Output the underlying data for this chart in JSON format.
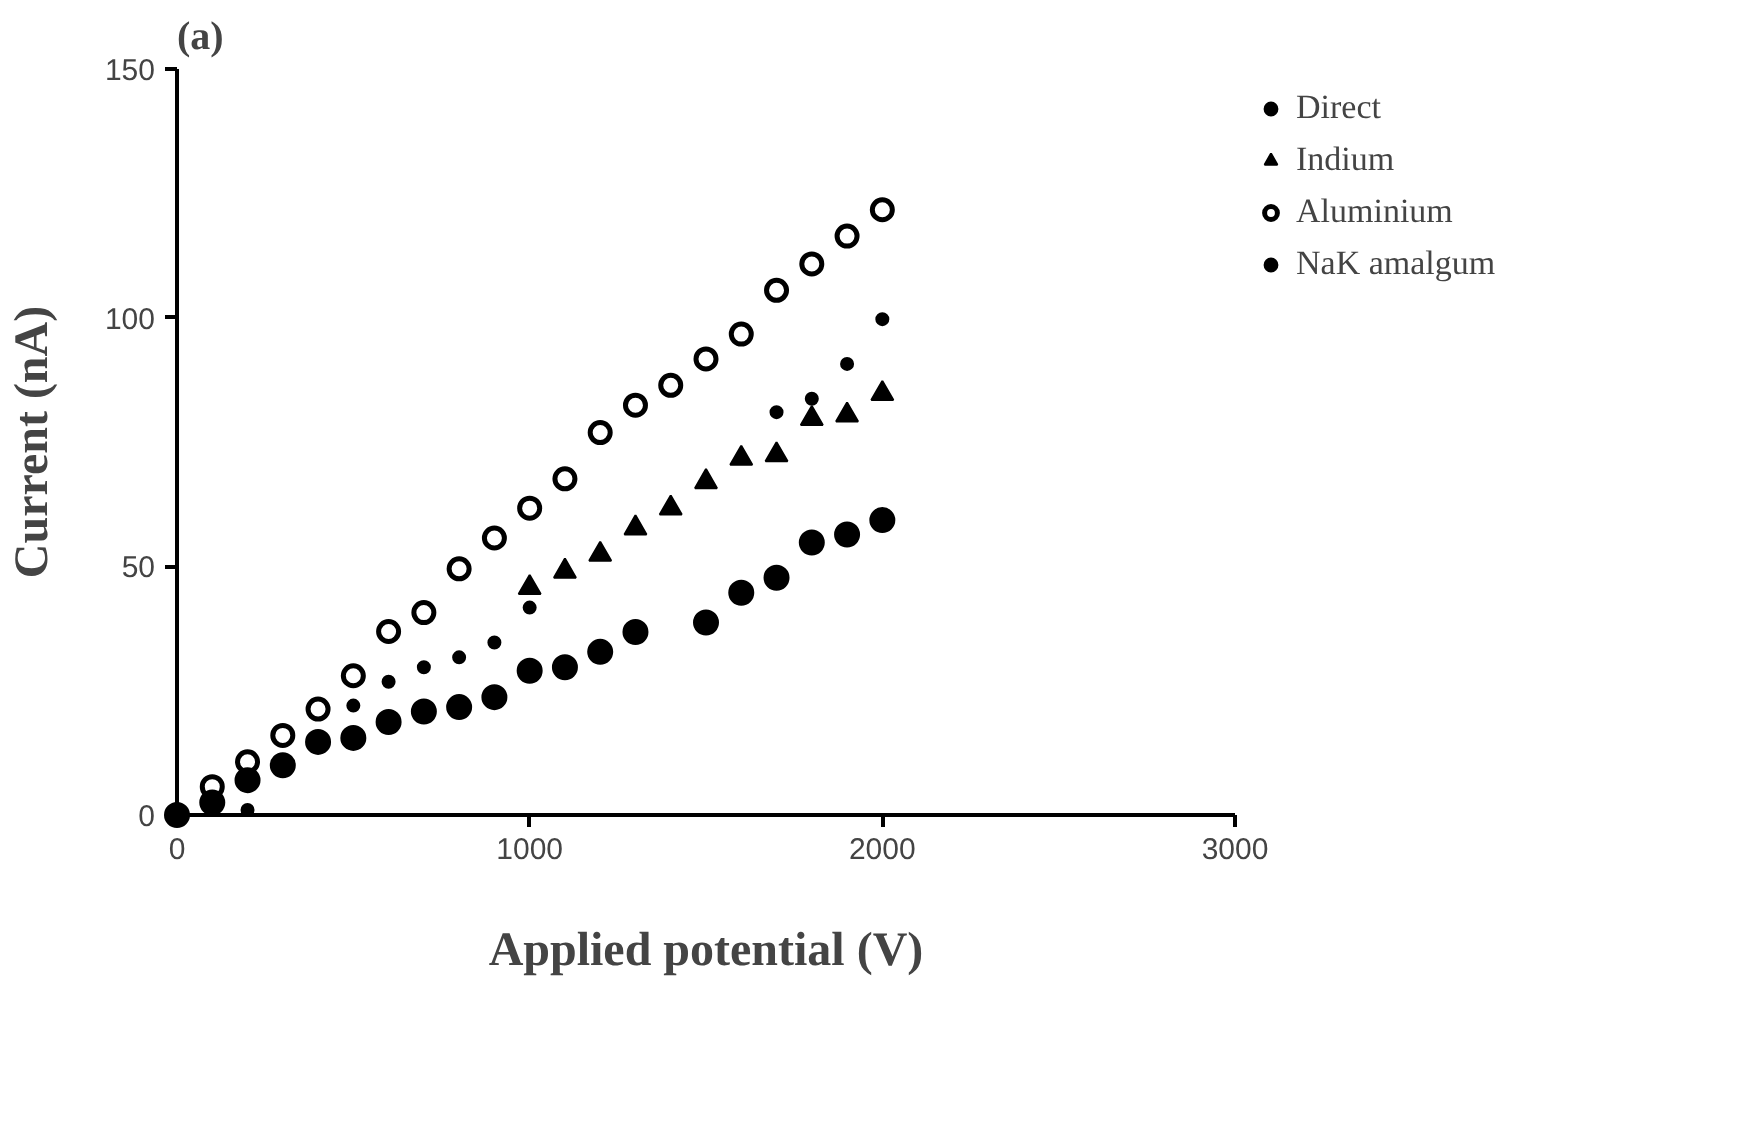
{
  "chart_data": {
    "type": "scatter",
    "title": "(a)",
    "xlabel": "Applied potential (V)",
    "ylabel": "Current (nA)",
    "xlim": [
      0,
      3000
    ],
    "ylim": [
      0,
      150
    ],
    "xticks": [
      0,
      1000,
      2000,
      3000
    ],
    "yticks": [
      0,
      50,
      100,
      150
    ],
    "grid": false,
    "legend": "right",
    "series": [
      {
        "name": "Direct",
        "color": "#000000",
        "marker": "circle",
        "x": [
          200,
          500,
          600,
          700,
          800,
          900,
          1000,
          1700,
          1800,
          1900,
          2000
        ],
        "values": [
          1,
          22,
          26.8,
          29.7,
          31.7,
          34.7,
          41.7,
          81,
          83.7,
          90.7,
          99.7
        ]
      },
      {
        "name": "Indium",
        "color": "#000000",
        "marker": "triangle",
        "x": [
          1000,
          1100,
          1200,
          1300,
          1400,
          1500,
          1600,
          1700,
          1800,
          1900,
          2000
        ],
        "values": [
          45.7,
          49,
          52.4,
          57.7,
          61.7,
          67,
          71.7,
          72.4,
          79.7,
          80.4,
          84.7
        ]
      },
      {
        "name": "Aluminium",
        "color": "#000000",
        "marker": "circle",
        "x": [
          100,
          200,
          300,
          400,
          500,
          600,
          700,
          800,
          900,
          1000,
          1100,
          1200,
          1300,
          1400,
          1500,
          1600,
          1700,
          1800,
          1900,
          2000
        ],
        "values": [
          5.7,
          10.7,
          16,
          21.3,
          28,
          36.9,
          40.7,
          49.5,
          55.7,
          61.7,
          67.6,
          76.9,
          82.4,
          86.4,
          91.7,
          96.7,
          105.5,
          110.8,
          116.4,
          121.7
        ]
      },
      {
        "name": "NaK amalgum",
        "color": "#000000",
        "marker": "circle",
        "x": [
          0,
          100,
          200,
          300,
          400,
          500,
          600,
          700,
          800,
          900,
          1000,
          1100,
          1200,
          1300,
          1500,
          1600,
          1700,
          1800,
          1900,
          2000
        ],
        "values": [
          0,
          2.5,
          7,
          10,
          14.7,
          15.5,
          18.7,
          20.8,
          21.7,
          23.7,
          29,
          29.7,
          32.8,
          36.8,
          38.7,
          44.7,
          47.7,
          54.8,
          56.4,
          59.3
        ]
      }
    ]
  }
}
